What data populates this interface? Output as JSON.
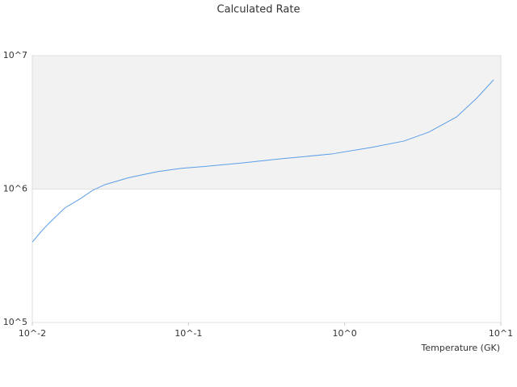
{
  "chart_data": {
    "type": "line",
    "title": "Calculated Rate",
    "x_label": "Temperature (GK)",
    "x": [
      0.01,
      0.0113,
      0.0127,
      0.0161,
      0.0204,
      0.0244,
      0.0292,
      0.0417,
      0.0633,
      0.0903,
      0.122,
      0.22,
      0.4,
      0.82,
      1.48,
      2.4,
      3.45,
      5.2,
      7.0,
      9.0
    ],
    "series": [
      {
        "color": "#5b9ee8",
        "values": [
          400000,
          475000,
          550000,
          720000,
          850000,
          980000,
          1080000,
          1220000,
          1350000,
          1430000,
          1470000,
          1570000,
          1690000,
          1830000,
          2050000,
          2290000,
          2670000,
          3470000,
          4790000,
          6600000
        ]
      }
    ],
    "xlim": [
      0.01,
      10
    ],
    "ylim": [
      100000,
      10000000
    ],
    "xticks": [
      {
        "value": 0.01,
        "label": "10^-2"
      },
      {
        "value": 0.1,
        "label": "10^-1"
      },
      {
        "value": 1,
        "label": "10^0"
      },
      {
        "value": 10,
        "label": "10^1"
      }
    ],
    "yticks": [
      {
        "value": 100000,
        "label": "10^5"
      },
      {
        "value": 1000000,
        "label": "10^6"
      },
      {
        "value": 10000000,
        "label": "10^7"
      }
    ],
    "x_log": true,
    "y_log": true,
    "plot_band": [
      1000000,
      10000000
    ],
    "band_color": "#f2f2f2",
    "grid": true
  }
}
